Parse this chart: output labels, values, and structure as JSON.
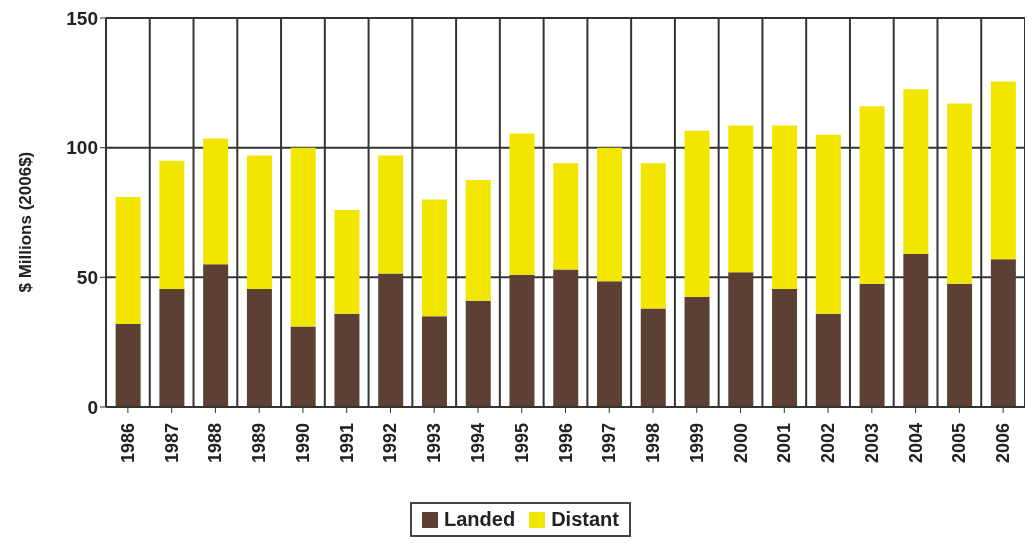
{
  "chart_data": {
    "type": "bar",
    "stacked": true,
    "ylabel": "$ Millions (2006$)",
    "categories": [
      "1986",
      "1987",
      "1988",
      "1989",
      "1990",
      "1991",
      "1992",
      "1993",
      "1994",
      "1995",
      "1996",
      "1997",
      "1998",
      "1999",
      "2000",
      "2001",
      "2002",
      "2003",
      "2004",
      "2005",
      "2006"
    ],
    "series": [
      {
        "name": "Landed",
        "color": "#5c4033",
        "values": [
          32,
          45.5,
          55,
          45.5,
          31,
          36,
          51.5,
          35,
          41,
          51,
          53,
          48.5,
          38,
          42.5,
          52,
          45.5,
          36,
          47.5,
          59,
          47.5,
          57
        ]
      },
      {
        "name": "Distant",
        "color": "#f2e600",
        "values": [
          49,
          49.5,
          48.5,
          51.5,
          69,
          40,
          45.5,
          45,
          46.5,
          54.5,
          41,
          51.5,
          56,
          64,
          56.5,
          63,
          69,
          68.5,
          63.5,
          69.5,
          68.5
        ]
      }
    ],
    "ylim": [
      0,
      150
    ],
    "yticks": [
      0,
      50,
      100,
      150
    ],
    "grid": true,
    "legend": "bottom"
  }
}
